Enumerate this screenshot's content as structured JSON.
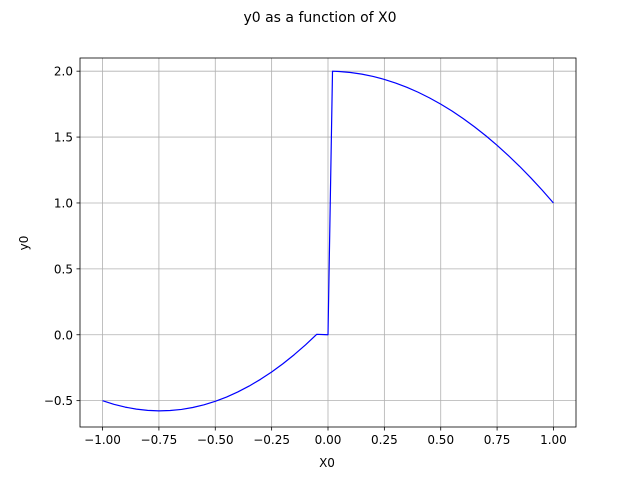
{
  "chart_data": {
    "type": "line",
    "title": "y0 as a function of X0",
    "xlabel": "X0",
    "ylabel": "y0",
    "xlim": [
      -1.1,
      1.1
    ],
    "ylim": [
      -0.7,
      2.1
    ],
    "xticks": [
      -1.0,
      -0.75,
      -0.5,
      -0.25,
      0.0,
      0.25,
      0.5,
      0.75,
      1.0
    ],
    "xtick_labels": [
      "−1.00",
      "−0.75",
      "−0.50",
      "−0.25",
      "0.00",
      "0.25",
      "0.50",
      "0.75",
      "1.00"
    ],
    "yticks": [
      -0.5,
      0.0,
      0.5,
      1.0,
      1.5,
      2.0
    ],
    "ytick_labels": [
      "−0.5",
      "0.0",
      "0.5",
      "1.0",
      "1.5",
      "2.0"
    ],
    "grid": true,
    "line_color": "#0000ff",
    "series": [
      {
        "x": [
          -1.0,
          -0.95,
          -0.9,
          -0.85,
          -0.8,
          -0.75,
          -0.7,
          -0.65,
          -0.6,
          -0.55,
          -0.5,
          -0.45,
          -0.4,
          -0.35,
          -0.3,
          -0.25,
          -0.2,
          -0.15,
          -0.1,
          -0.05,
          0.0,
          0.02,
          0.05,
          0.1,
          0.15,
          0.2,
          0.25,
          0.3,
          0.35,
          0.4,
          0.45,
          0.5,
          0.55,
          0.6,
          0.65,
          0.7,
          0.75,
          0.8,
          0.85,
          0.9,
          0.95,
          1.0
        ],
        "y": [
          -0.5,
          -0.5275,
          -0.549,
          -0.5645,
          -0.574,
          -0.5775,
          -0.575,
          -0.5665,
          -0.552,
          -0.5315,
          -0.505,
          -0.4725,
          -0.434,
          -0.3895,
          -0.339,
          -0.2825,
          -0.22,
          -0.1515,
          -0.077,
          0.0035,
          0.0,
          2.0,
          1.9975,
          1.99,
          1.9775,
          1.96,
          1.9375,
          1.91,
          1.8775,
          1.84,
          1.7975,
          1.75,
          1.6975,
          1.64,
          1.5775,
          1.51,
          1.4375,
          1.36,
          1.2775,
          1.19,
          1.0975,
          1.0
        ]
      }
    ]
  }
}
